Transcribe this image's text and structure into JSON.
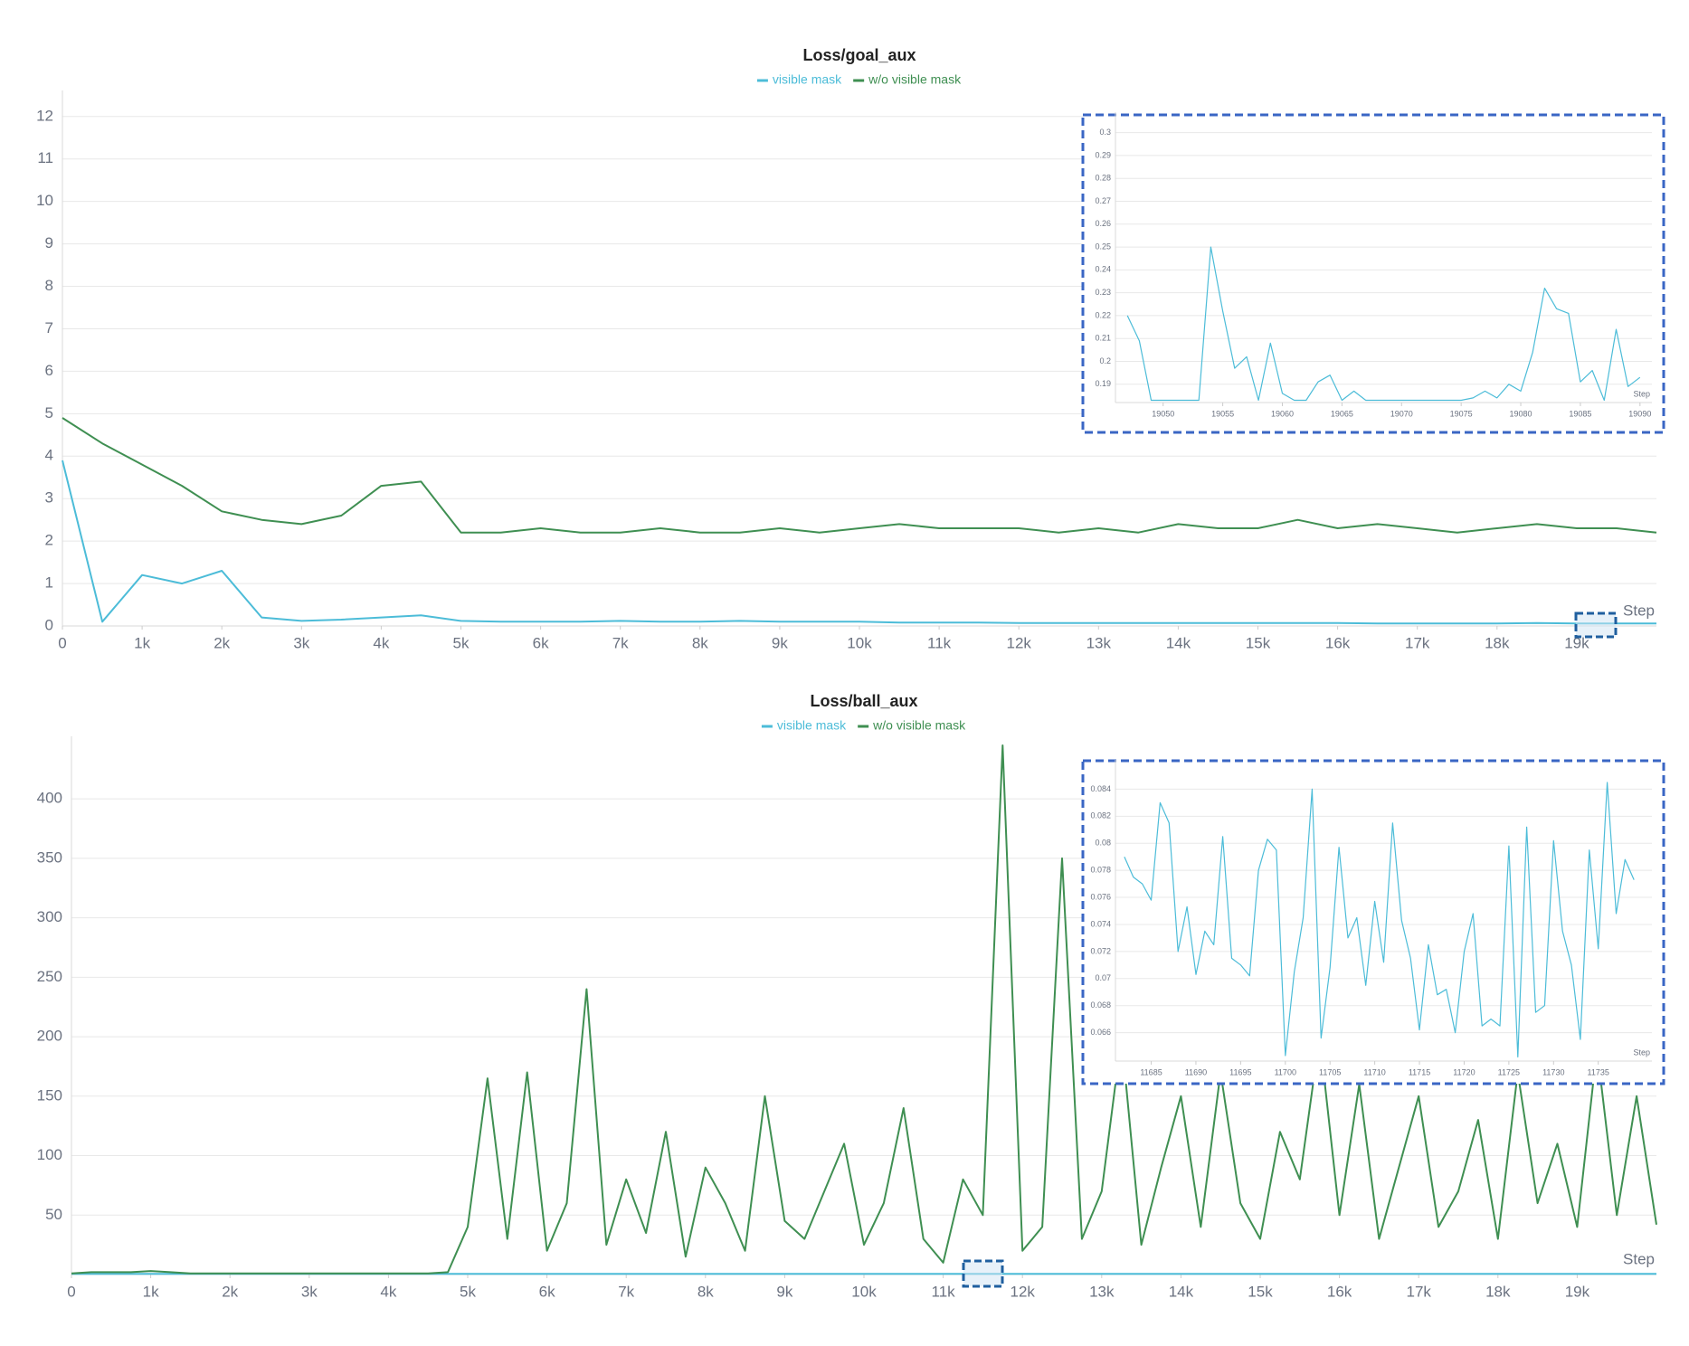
{
  "chart_data": [
    {
      "type": "line",
      "title": "Loss/goal_aux",
      "xlabel": "Step",
      "legend": "top",
      "grid": true,
      "x": [
        0,
        500,
        1000,
        1500,
        2000,
        2500,
        3000,
        3500,
        4000,
        4500,
        5000,
        5500,
        6000,
        6500,
        7000,
        7500,
        8000,
        8500,
        9000,
        9500,
        10000,
        10500,
        11000,
        11500,
        12000,
        12500,
        13000,
        13500,
        14000,
        14500,
        15000,
        15500,
        16000,
        16500,
        17000,
        17500,
        18000,
        18500,
        19000,
        19500,
        20000
      ],
      "xlim": [
        0,
        20000
      ],
      "xticks": [
        0,
        {
          "value": 1000,
          "label": "1k"
        },
        {
          "value": 2000,
          "label": "2k"
        },
        {
          "value": 3000,
          "label": "3k"
        },
        {
          "value": 4000,
          "label": "4k"
        },
        {
          "value": 5000,
          "label": "5k"
        },
        {
          "value": 6000,
          "label": "6k"
        },
        {
          "value": 7000,
          "label": "7k"
        },
        {
          "value": 8000,
          "label": "8k"
        },
        {
          "value": 9000,
          "label": "9k"
        },
        {
          "value": 10000,
          "label": "10k"
        },
        {
          "value": 11000,
          "label": "11k"
        },
        {
          "value": 12000,
          "label": "12k"
        },
        {
          "value": 13000,
          "label": "13k"
        },
        {
          "value": 14000,
          "label": "14k"
        },
        {
          "value": 15000,
          "label": "15k"
        },
        {
          "value": 16000,
          "label": "16k"
        },
        {
          "value": 17000,
          "label": "17k"
        },
        {
          "value": 18000,
          "label": "18k"
        },
        {
          "value": 19000,
          "label": "19k"
        }
      ],
      "ylim": [
        0,
        12.4
      ],
      "yticks": [
        0,
        1,
        2,
        3,
        4,
        5,
        6,
        7,
        8,
        9,
        10,
        11,
        12
      ],
      "series": [
        {
          "name": "visible mask",
          "color": "#4cbcd8",
          "values": [
            3.9,
            0.1,
            1.2,
            1.0,
            1.3,
            0.2,
            0.12,
            0.15,
            0.2,
            0.25,
            0.12,
            0.1,
            0.1,
            0.1,
            0.12,
            0.1,
            0.1,
            0.12,
            0.1,
            0.1,
            0.1,
            0.08,
            0.08,
            0.08,
            0.07,
            0.07,
            0.07,
            0.07,
            0.07,
            0.07,
            0.07,
            0.07,
            0.07,
            0.06,
            0.06,
            0.06,
            0.06,
            0.07,
            0.06,
            0.06,
            0.06
          ]
        },
        {
          "name": "w/o visible mask",
          "color": "#3f8f52",
          "values": [
            4.9,
            4.3,
            3.8,
            3.3,
            2.7,
            2.5,
            2.4,
            2.6,
            3.3,
            3.4,
            2.2,
            2.2,
            2.3,
            2.2,
            2.2,
            2.3,
            2.2,
            2.2,
            2.3,
            2.2,
            2.3,
            2.4,
            2.3,
            2.3,
            2.3,
            2.2,
            2.3,
            2.2,
            2.4,
            2.3,
            2.3,
            2.5,
            2.3,
            2.4,
            2.3,
            2.2,
            2.3,
            2.4,
            2.3,
            2.3,
            2.2
          ]
        }
      ]
    },
    {
      "type": "line",
      "xlabel": "Step",
      "grid": true,
      "x": [
        19047,
        19048,
        19049,
        19050,
        19051,
        19052,
        19053,
        19054,
        19055,
        19056,
        19057,
        19058,
        19059,
        19060,
        19061,
        19062,
        19063,
        19064,
        19065,
        19066,
        19067,
        19068,
        19069,
        19070,
        19071,
        19072,
        19073,
        19074,
        19075,
        19076,
        19077,
        19078,
        19079,
        19080,
        19081,
        19082,
        19083,
        19084,
        19085,
        19086,
        19087,
        19088,
        19089,
        19090
      ],
      "xlim": [
        19046,
        19091
      ],
      "xticks": [
        19050,
        19055,
        19060,
        19065,
        19070,
        19075,
        19080,
        19085,
        19090
      ],
      "ylim": [
        0.182,
        0.305
      ],
      "yticks": [
        0.19,
        0.2,
        0.21,
        0.22,
        0.23,
        0.24,
        0.25,
        0.26,
        0.27,
        0.28,
        0.29,
        0.3
      ],
      "series": [
        {
          "color": "#4cbcd8",
          "values": [
            0.22,
            0.209,
            0.183,
            0.183,
            0.183,
            0.183,
            0.183,
            0.25,
            0.222,
            0.197,
            0.202,
            0.183,
            0.208,
            0.186,
            0.183,
            0.183,
            0.191,
            0.194,
            0.183,
            0.187,
            0.183,
            0.183,
            0.183,
            0.183,
            0.183,
            0.183,
            0.183,
            0.183,
            0.183,
            0.184,
            0.187,
            0.184,
            0.19,
            0.187,
            0.204,
            0.232,
            0.223,
            0.221,
            0.191,
            0.196,
            0.183,
            0.214,
            0.189,
            0.193
          ]
        }
      ]
    },
    {
      "type": "line",
      "title": "Loss/ball_aux",
      "xlabel": "Step",
      "legend": "top",
      "grid": true,
      "x": [
        0,
        250,
        500,
        750,
        1000,
        1250,
        1500,
        1750,
        2000,
        2250,
        2500,
        2750,
        3000,
        3250,
        3500,
        3750,
        4000,
        4250,
        4500,
        4750,
        5000,
        5250,
        5500,
        5750,
        6000,
        6250,
        6500,
        6750,
        7000,
        7250,
        7500,
        7750,
        8000,
        8250,
        8500,
        8750,
        9000,
        9250,
        9500,
        9750,
        10000,
        10250,
        10500,
        10750,
        11000,
        11250,
        11500,
        11750,
        12000,
        12250,
        12500,
        12750,
        13000,
        13250,
        13500,
        13750,
        14000,
        14250,
        14500,
        14750,
        15000,
        15250,
        15500,
        15750,
        16000,
        16250,
        16500,
        16750,
        17000,
        17250,
        17500,
        17750,
        18000,
        18250,
        18500,
        18750,
        19000,
        19250,
        19500,
        19750,
        20000
      ],
      "xlim": [
        0,
        20000
      ],
      "xticks": [
        0,
        {
          "value": 1000,
          "label": "1k"
        },
        {
          "value": 2000,
          "label": "2k"
        },
        {
          "value": 3000,
          "label": "3k"
        },
        {
          "value": 4000,
          "label": "4k"
        },
        {
          "value": 5000,
          "label": "5k"
        },
        {
          "value": 6000,
          "label": "6k"
        },
        {
          "value": 7000,
          "label": "7k"
        },
        {
          "value": 8000,
          "label": "8k"
        },
        {
          "value": 9000,
          "label": "9k"
        },
        {
          "value": 10000,
          "label": "10k"
        },
        {
          "value": 11000,
          "label": "11k"
        },
        {
          "value": 12000,
          "label": "12k"
        },
        {
          "value": 13000,
          "label": "13k"
        },
        {
          "value": 14000,
          "label": "14k"
        },
        {
          "value": 15000,
          "label": "15k"
        },
        {
          "value": 16000,
          "label": "16k"
        },
        {
          "value": 17000,
          "label": "17k"
        },
        {
          "value": 18000,
          "label": "18k"
        },
        {
          "value": 19000,
          "label": "19k"
        }
      ],
      "ylim": [
        0,
        445
      ],
      "yticks": [
        50,
        100,
        150,
        200,
        250,
        300,
        350,
        400
      ],
      "series": [
        {
          "name": "visible mask",
          "color": "#4cbcd8",
          "values": [
            0.6,
            0.6,
            0.6,
            0.6,
            0.6,
            0.6,
            0.6,
            0.6,
            0.6,
            0.6,
            0.6,
            0.6,
            0.6,
            0.6,
            0.6,
            0.6,
            0.6,
            0.6,
            0.6,
            0.6,
            0.6,
            0.6,
            0.6,
            0.6,
            0.6,
            0.6,
            0.6,
            0.6,
            0.6,
            0.6,
            0.6,
            0.6,
            0.6,
            0.6,
            0.6,
            0.6,
            0.6,
            0.6,
            0.6,
            0.6,
            0.6,
            0.6,
            0.6,
            0.6,
            0.6,
            0.6,
            0.6,
            0.6,
            0.6,
            0.6,
            0.6,
            0.6,
            0.6,
            0.6,
            0.6,
            0.6,
            0.6,
            0.6,
            0.6,
            0.6,
            0.6,
            0.6,
            0.6,
            0.6,
            0.6,
            0.6,
            0.6,
            0.6,
            0.6,
            0.6,
            0.6,
            0.6,
            0.6,
            0.6,
            0.6,
            0.6,
            0.6,
            0.6,
            0.6,
            0.6,
            0.6
          ]
        },
        {
          "name": "w/o visible mask",
          "color": "#3f8f52",
          "values": [
            1,
            2,
            2,
            2,
            3,
            2,
            1,
            1,
            1,
            1,
            1,
            1,
            1,
            1,
            1,
            1,
            1,
            1,
            1,
            2,
            40,
            165,
            30,
            170,
            20,
            60,
            240,
            25,
            80,
            35,
            120,
            15,
            90,
            60,
            20,
            150,
            45,
            30,
            70,
            110,
            25,
            60,
            140,
            30,
            10,
            80,
            50,
            445,
            20,
            40,
            350,
            30,
            70,
            200,
            25,
            90,
            150,
            40,
            170,
            60,
            30,
            120,
            80,
            200,
            50,
            160,
            30,
            90,
            150,
            40,
            70,
            130,
            30,
            170,
            60,
            110,
            40,
            190,
            50,
            150,
            42
          ]
        }
      ]
    },
    {
      "type": "line",
      "xlabel": "Step",
      "grid": true,
      "x": [
        11682,
        11683,
        11684,
        11685,
        11686,
        11687,
        11688,
        11689,
        11690,
        11691,
        11692,
        11693,
        11694,
        11695,
        11696,
        11697,
        11698,
        11699,
        11700,
        11701,
        11702,
        11703,
        11704,
        11705,
        11706,
        11707,
        11708,
        11709,
        11710,
        11711,
        11712,
        11713,
        11714,
        11715,
        11716,
        11717,
        11718,
        11719,
        11720,
        11721,
        11722,
        11723,
        11724,
        11725,
        11726,
        11727,
        11728,
        11729,
        11730,
        11731,
        11732,
        11733,
        11734,
        11735,
        11736,
        11737,
        11738,
        11739
      ],
      "xlim": [
        11681,
        11741
      ],
      "xticks": [
        11685,
        11690,
        11695,
        11700,
        11705,
        11710,
        11715,
        11720,
        11725,
        11730,
        11735
      ],
      "ylim": [
        0.0639,
        0.0855
      ],
      "yticks": [
        0.066,
        0.068,
        0.07,
        0.072,
        0.074,
        0.076,
        0.078,
        0.08,
        0.082,
        0.084
      ],
      "series": [
        {
          "color": "#4cbcd8",
          "values": [
            0.079,
            0.0775,
            0.077,
            0.0758,
            0.083,
            0.0815,
            0.072,
            0.0753,
            0.0703,
            0.0735,
            0.0725,
            0.0805,
            0.0715,
            0.071,
            0.0702,
            0.078,
            0.0803,
            0.0795,
            0.0643,
            0.0705,
            0.0745,
            0.084,
            0.0656,
            0.0708,
            0.0797,
            0.073,
            0.0745,
            0.0695,
            0.0757,
            0.0712,
            0.0815,
            0.0743,
            0.0715,
            0.0662,
            0.0725,
            0.0688,
            0.0692,
            0.066,
            0.072,
            0.0748,
            0.0665,
            0.067,
            0.0665,
            0.0798,
            0.0642,
            0.0812,
            0.0675,
            0.068,
            0.0802,
            0.0735,
            0.071,
            0.0655,
            0.0795,
            0.0722,
            0.0845,
            0.0748,
            0.0788,
            0.0773
          ]
        }
      ]
    }
  ]
}
